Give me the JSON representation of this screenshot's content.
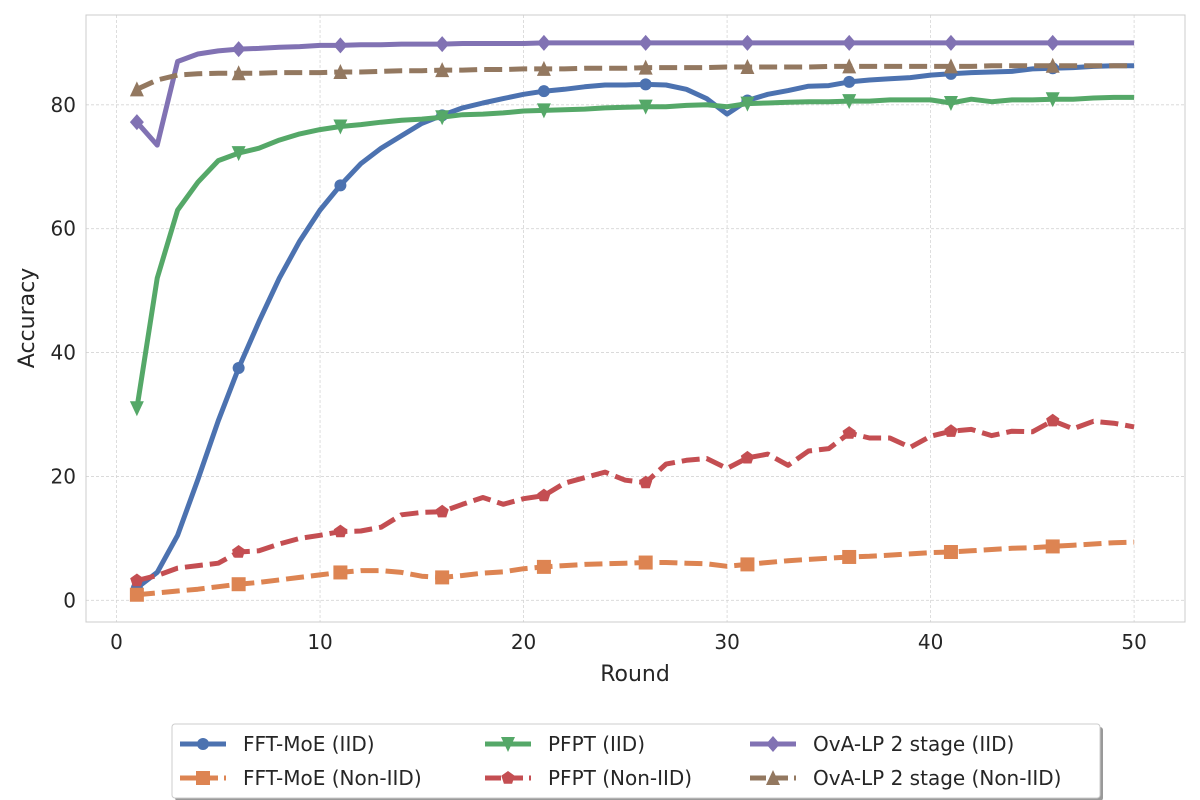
{
  "chart_data": {
    "type": "line",
    "title": "",
    "xlabel": "Round",
    "ylabel": "Accuracy",
    "xlim": [
      -1.5,
      52.5
    ],
    "ylim": [
      -3.5,
      94.5
    ],
    "xticks": [
      0,
      10,
      20,
      30,
      40,
      50
    ],
    "yticks": [
      0,
      20,
      40,
      60,
      80
    ],
    "grid": true,
    "legend_position": "bottom-center, below plot",
    "x": [
      1,
      2,
      3,
      4,
      5,
      6,
      7,
      8,
      9,
      10,
      11,
      12,
      13,
      14,
      15,
      16,
      17,
      18,
      19,
      20,
      21,
      22,
      23,
      24,
      25,
      26,
      27,
      28,
      29,
      30,
      31,
      32,
      33,
      34,
      35,
      36,
      37,
      38,
      39,
      40,
      41,
      42,
      43,
      44,
      45,
      46,
      47,
      48,
      49,
      50
    ],
    "series": [
      {
        "name": "FFT-MoE (IID)",
        "color": "#4c72b0",
        "dashed": false,
        "marker": "circle",
        "values": [
          2,
          4.5,
          10.5,
          19.5,
          29,
          37.5,
          45,
          52,
          58,
          63,
          67,
          70.5,
          73,
          75,
          77,
          78.3,
          79.5,
          80.3,
          81,
          81.7,
          82.2,
          82.5,
          82.9,
          83.2,
          83.2,
          83.3,
          83.2,
          82.5,
          81,
          78.5,
          80.7,
          81.7,
          82.3,
          83,
          83.1,
          83.7,
          84,
          84.2,
          84.4,
          84.8,
          85,
          85.2,
          85.3,
          85.4,
          85.8,
          85.9,
          86,
          86.2,
          86.3,
          86.3
        ]
      },
      {
        "name": "FFT-MoE (Non-IID)",
        "color": "#dd8452",
        "dashed": true,
        "marker": "square",
        "values": [
          0.9,
          1.2,
          1.5,
          1.8,
          2.2,
          2.6,
          2.9,
          3.3,
          3.7,
          4.1,
          4.5,
          4.8,
          4.8,
          4.5,
          3.9,
          3.7,
          4,
          4.4,
          4.6,
          5.1,
          5.4,
          5.6,
          5.8,
          5.9,
          6,
          6.1,
          6.1,
          6,
          5.9,
          5.5,
          5.8,
          6.1,
          6.4,
          6.6,
          6.8,
          7,
          7.1,
          7.3,
          7.5,
          7.7,
          7.8,
          8,
          8.2,
          8.4,
          8.5,
          8.7,
          8.9,
          9.1,
          9.3,
          9.4
        ]
      },
      {
        "name": "PFPT (IID)",
        "color": "#55a868",
        "dashed": false,
        "marker": "triangle-down",
        "values": [
          31,
          52,
          63,
          67.5,
          71,
          72.2,
          73,
          74.3,
          75.3,
          76,
          76.5,
          76.8,
          77.2,
          77.5,
          77.7,
          78,
          78.4,
          78.5,
          78.7,
          79,
          79.1,
          79.2,
          79.3,
          79.5,
          79.6,
          79.7,
          79.7,
          79.9,
          80,
          79.7,
          80.2,
          80.3,
          80.4,
          80.5,
          80.5,
          80.6,
          80.6,
          80.8,
          80.8,
          80.8,
          80.3,
          80.9,
          80.5,
          80.8,
          80.8,
          80.9,
          80.9,
          81.1,
          81.2,
          81.2
        ]
      },
      {
        "name": "PFPT (Non-IID)",
        "color": "#c44e52",
        "dashed": true,
        "marker": "pentagon",
        "values": [
          3.2,
          4,
          5.2,
          5.6,
          6,
          7.8,
          8,
          9.1,
          10,
          10.5,
          11.1,
          11.2,
          11.8,
          13.8,
          14.2,
          14.3,
          15.5,
          16.6,
          15.5,
          16.4,
          16.9,
          18.9,
          19.8,
          20.7,
          19.4,
          19,
          22,
          22.6,
          22.9,
          21.3,
          23,
          23.6,
          21.8,
          24.1,
          24.5,
          27,
          26.2,
          26.2,
          24.7,
          26.5,
          27.3,
          27.6,
          26.6,
          27.3,
          27.2,
          29,
          27.7,
          28.9,
          28.6,
          28
        ]
      },
      {
        "name": "OvA-LP 2 stage (IID)",
        "color": "#8172b3",
        "dashed": false,
        "marker": "diamond",
        "values": [
          77.2,
          73.5,
          87,
          88.2,
          88.7,
          89,
          89.1,
          89.3,
          89.4,
          89.6,
          89.6,
          89.7,
          89.7,
          89.8,
          89.8,
          89.8,
          89.9,
          89.9,
          89.9,
          89.9,
          90,
          90,
          90,
          90,
          90,
          90,
          90,
          90,
          90,
          90,
          90,
          90,
          90,
          90,
          90,
          90,
          90,
          90,
          90,
          90,
          90,
          90,
          90,
          90,
          90,
          90,
          90,
          90,
          90,
          90
        ]
      },
      {
        "name": "OvA-LP 2 stage (Non-IID)",
        "color": "#937860",
        "dashed": true,
        "marker": "triangle-up",
        "values": [
          82.5,
          84,
          84.8,
          85,
          85.1,
          85.1,
          85.1,
          85.2,
          85.2,
          85.2,
          85.3,
          85.3,
          85.4,
          85.5,
          85.5,
          85.6,
          85.6,
          85.7,
          85.7,
          85.8,
          85.8,
          85.8,
          85.9,
          85.9,
          85.9,
          86,
          86,
          86,
          86,
          86.1,
          86.1,
          86.1,
          86.1,
          86.1,
          86.2,
          86.2,
          86.2,
          86.2,
          86.2,
          86.2,
          86.2,
          86.2,
          86.3,
          86.3,
          86.3,
          86.3,
          86.3,
          86.3,
          86.3,
          86.3
        ]
      }
    ],
    "legend_order": [
      0,
      2,
      4,
      1,
      3,
      5
    ]
  }
}
